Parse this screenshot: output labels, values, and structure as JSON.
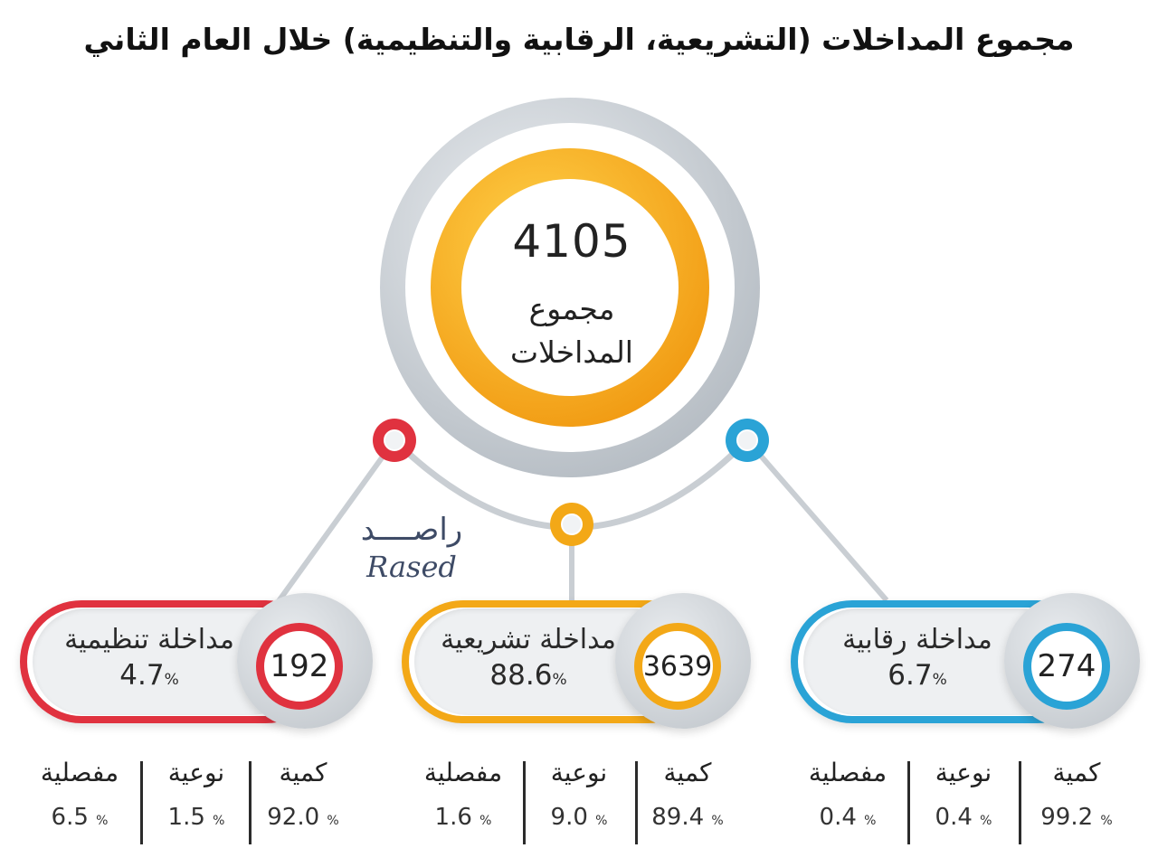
{
  "title": "مجموع المداخلات (التشريعية، الرقابية والتنظيمية) خلال العام الثاني",
  "total": {
    "value": "4105",
    "label_line1": "مجموع",
    "label_line2": "المداخلات"
  },
  "watermark": {
    "arabic": "راصــــد",
    "latin": "Rased"
  },
  "groups": [
    {
      "name": "مداخلة تنظيمية",
      "count": "192",
      "percent": "4.7",
      "color": "#e0323f",
      "stats": [
        {
          "label": "كمية",
          "value": "92.0"
        },
        {
          "label": "نوعية",
          "value": "1.5"
        },
        {
          "label": "مفصلية",
          "value": "6.5"
        }
      ]
    },
    {
      "name": "مداخلة تشريعية",
      "count": "3639",
      "percent": "88.6",
      "color": "#f3a817",
      "stats": [
        {
          "label": "كمية",
          "value": "89.4"
        },
        {
          "label": "نوعية",
          "value": "9.0"
        },
        {
          "label": "مفصلية",
          "value": "1.6"
        }
      ]
    },
    {
      "name": "مداخلة رقابية",
      "count": "274",
      "percent": "6.7",
      "color": "#2aa3d6",
      "stats": [
        {
          "label": "كمية",
          "value": "99.2"
        },
        {
          "label": "نوعية",
          "value": "0.4"
        },
        {
          "label": "مفصلية",
          "value": "0.4"
        }
      ]
    }
  ],
  "percent_sign": "%"
}
